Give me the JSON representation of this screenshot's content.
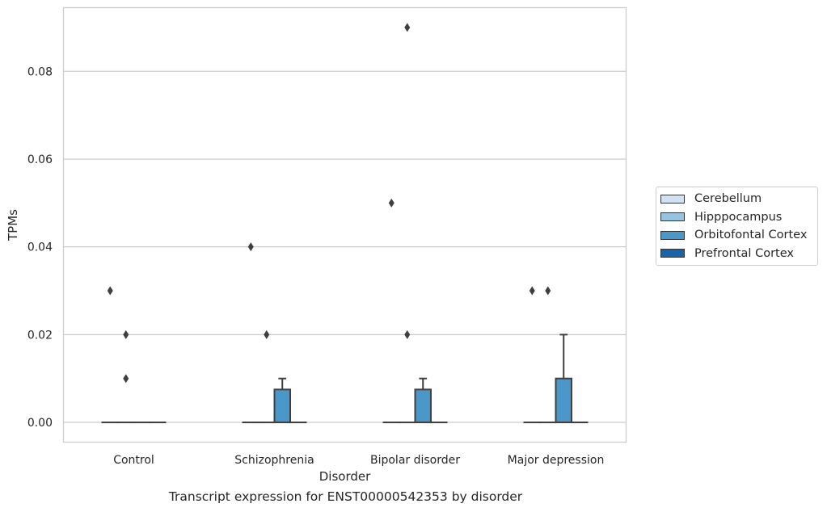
{
  "caption": "Transcript expression for ENST00000542353 by disorder",
  "chart_data": {
    "type": "box",
    "xlabel": "Disorder",
    "ylabel": "TPMs",
    "ylim": [
      -0.0045,
      0.0945
    ],
    "yticks": [
      0.0,
      0.02,
      0.04,
      0.06,
      0.08
    ],
    "ytick_labels": [
      "0.00",
      "0.02",
      "0.04",
      "0.06",
      "0.08"
    ],
    "categories": [
      "Control",
      "Schizophrenia",
      "Bipolar disorder",
      "Major depression"
    ],
    "grid": "horizontal",
    "legend_position": "right",
    "hue_order": [
      "Cerebellum",
      "Hipppocampus",
      "Orbitofontal Cortex",
      "Prefrontal Cortex"
    ],
    "colors": [
      "#d0e1f2",
      "#94c4df",
      "#4a98c9",
      "#1764ab"
    ],
    "series": [
      {
        "name": "Cerebellum",
        "boxes": [
          {
            "q1": 0,
            "median": 0,
            "q3": 0,
            "whislo": 0,
            "whishi": 0,
            "fliers": [
              0.03
            ]
          },
          {
            "q1": 0,
            "median": 0,
            "q3": 0,
            "whislo": 0,
            "whishi": 0,
            "fliers": [
              0.04
            ]
          },
          {
            "q1": 0,
            "median": 0,
            "q3": 0,
            "whislo": 0,
            "whishi": 0,
            "fliers": [
              0.05
            ]
          },
          {
            "q1": 0,
            "median": 0,
            "q3": 0,
            "whislo": 0,
            "whishi": 0,
            "fliers": [
              0.03
            ]
          }
        ]
      },
      {
        "name": "Hipppocampus",
        "boxes": [
          {
            "q1": 0,
            "median": 0,
            "q3": 0,
            "whislo": 0,
            "whishi": 0,
            "fliers": [
              0.01,
              0.02
            ]
          },
          {
            "q1": 0,
            "median": 0,
            "q3": 0,
            "whislo": 0,
            "whishi": 0,
            "fliers": [
              0.02
            ]
          },
          {
            "q1": 0,
            "median": 0,
            "q3": 0,
            "whislo": 0,
            "whishi": 0,
            "fliers": [
              0.02,
              0.09
            ]
          },
          {
            "q1": 0,
            "median": 0,
            "q3": 0,
            "whislo": 0,
            "whishi": 0,
            "fliers": [
              0.03
            ]
          }
        ]
      },
      {
        "name": "Orbitofontal Cortex",
        "boxes": [
          {
            "q1": 0,
            "median": 0,
            "q3": 0,
            "whislo": 0,
            "whishi": 0,
            "fliers": []
          },
          {
            "q1": 0,
            "median": 0,
            "q3": 0.0075,
            "whislo": 0,
            "whishi": 0.01,
            "fliers": []
          },
          {
            "q1": 0,
            "median": 0,
            "q3": 0.0075,
            "whislo": 0,
            "whishi": 0.01,
            "fliers": []
          },
          {
            "q1": 0,
            "median": 0,
            "q3": 0.01,
            "whislo": 0,
            "whishi": 0.02,
            "fliers": []
          }
        ]
      },
      {
        "name": "Prefrontal Cortex",
        "boxes": [
          {
            "q1": 0,
            "median": 0,
            "q3": 0,
            "whislo": 0,
            "whishi": 0,
            "fliers": []
          },
          {
            "q1": 0,
            "median": 0,
            "q3": 0,
            "whislo": 0,
            "whishi": 0,
            "fliers": []
          },
          {
            "q1": 0,
            "median": 0,
            "q3": 0,
            "whislo": 0,
            "whishi": 0,
            "fliers": []
          },
          {
            "q1": 0,
            "median": 0,
            "q3": 0,
            "whislo": 0,
            "whishi": 0,
            "fliers": []
          }
        ]
      }
    ]
  }
}
